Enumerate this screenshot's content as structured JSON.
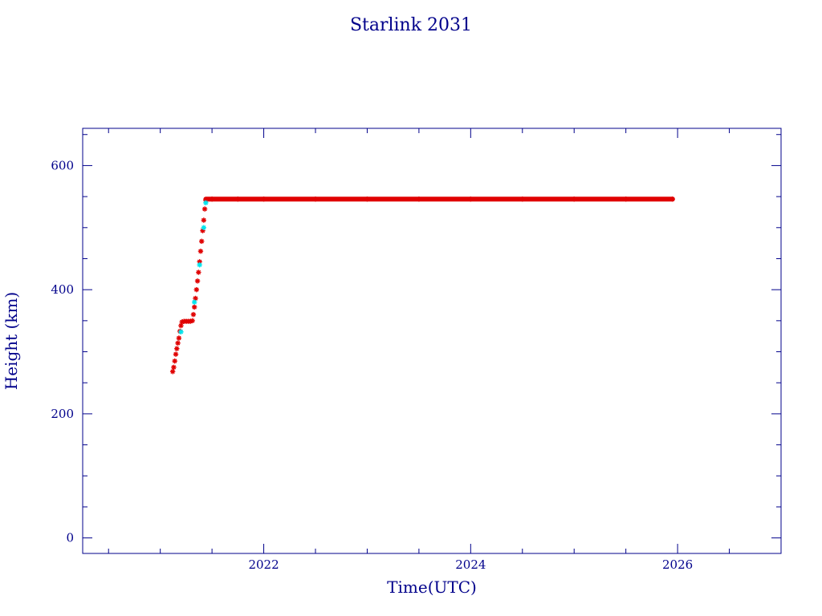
{
  "chart_data": {
    "type": "scatter",
    "title": "Starlink 2031",
    "xlabel": "Time(UTC)",
    "ylabel": "Height (km)",
    "xlim": [
      2020.25,
      2027.0
    ],
    "ylim": [
      -25,
      660
    ],
    "x_ticks": [
      2022,
      2024,
      2026
    ],
    "x_tick_labels": [
      "2022",
      "2024",
      "2026"
    ],
    "y_ticks": [
      0,
      200,
      400,
      600
    ],
    "y_tick_labels": [
      "0",
      "200",
      "400",
      "600"
    ],
    "grid": false,
    "series": [
      {
        "color": "#e00000",
        "marker": "star",
        "points": [
          [
            2021.12,
            268
          ],
          [
            2021.13,
            275
          ],
          [
            2021.14,
            285
          ],
          [
            2021.15,
            296
          ],
          [
            2021.16,
            305
          ],
          [
            2021.17,
            314
          ],
          [
            2021.18,
            322
          ],
          [
            2021.19,
            333
          ],
          [
            2021.2,
            342
          ],
          [
            2021.21,
            348
          ],
          [
            2021.23,
            349
          ],
          [
            2021.25,
            349
          ],
          [
            2021.27,
            349
          ],
          [
            2021.29,
            349
          ],
          [
            2021.31,
            350
          ],
          [
            2021.32,
            360
          ],
          [
            2021.33,
            372
          ],
          [
            2021.34,
            386
          ],
          [
            2021.35,
            400
          ],
          [
            2021.36,
            414
          ],
          [
            2021.37,
            428
          ],
          [
            2021.38,
            445
          ],
          [
            2021.39,
            462
          ],
          [
            2021.4,
            478
          ],
          [
            2021.41,
            495
          ],
          [
            2021.42,
            512
          ],
          [
            2021.43,
            530
          ],
          [
            2021.44,
            544
          ],
          [
            2021.5,
            546
          ],
          [
            2021.75,
            546
          ],
          [
            2022.0,
            546
          ],
          [
            2022.5,
            546
          ],
          [
            2023.0,
            546
          ],
          [
            2023.5,
            546
          ],
          [
            2024.0,
            546
          ],
          [
            2024.5,
            546
          ],
          [
            2025.0,
            546
          ],
          [
            2025.5,
            546
          ],
          [
            2025.95,
            546
          ]
        ],
        "continuous_segment": {
          "from": 2021.44,
          "to": 2025.95,
          "value": 546
        }
      },
      {
        "color": "#00e5ee",
        "marker": "star",
        "points": [
          [
            2021.2,
            332
          ],
          [
            2021.33,
            380
          ],
          [
            2021.38,
            440
          ],
          [
            2021.42,
            500
          ],
          [
            2021.44,
            540
          ]
        ]
      }
    ]
  }
}
